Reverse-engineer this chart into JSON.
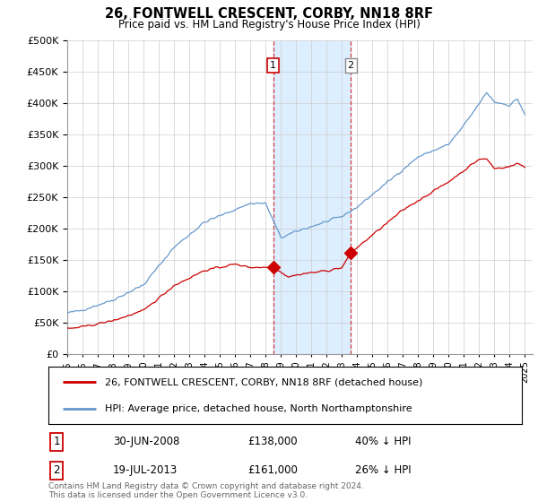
{
  "title": "26, FONTWELL CRESCENT, CORBY, NN18 8RF",
  "subtitle": "Price paid vs. HM Land Registry's House Price Index (HPI)",
  "legend_line1": "26, FONTWELL CRESCENT, CORBY, NN18 8RF (detached house)",
  "legend_line2": "HPI: Average price, detached house, North Northamptonshire",
  "transaction1_date": "30-JUN-2008",
  "transaction1_price": "£138,000",
  "transaction1_hpi": "40% ↓ HPI",
  "transaction2_date": "19-JUL-2013",
  "transaction2_price": "£161,000",
  "transaction2_hpi": "26% ↓ HPI",
  "footer": "Contains HM Land Registry data © Crown copyright and database right 2024.\nThis data is licensed under the Open Government Licence v3.0.",
  "red_color": "#cc0000",
  "blue_color": "#6699cc",
  "shading_color": "#ddeeff",
  "ylim": [
    0,
    500000
  ],
  "yticks": [
    0,
    50000,
    100000,
    150000,
    200000,
    250000,
    300000,
    350000,
    400000,
    450000,
    500000
  ],
  "transaction1_year": 2008.5,
  "transaction2_year": 2013.58,
  "background_color": "#ffffff"
}
